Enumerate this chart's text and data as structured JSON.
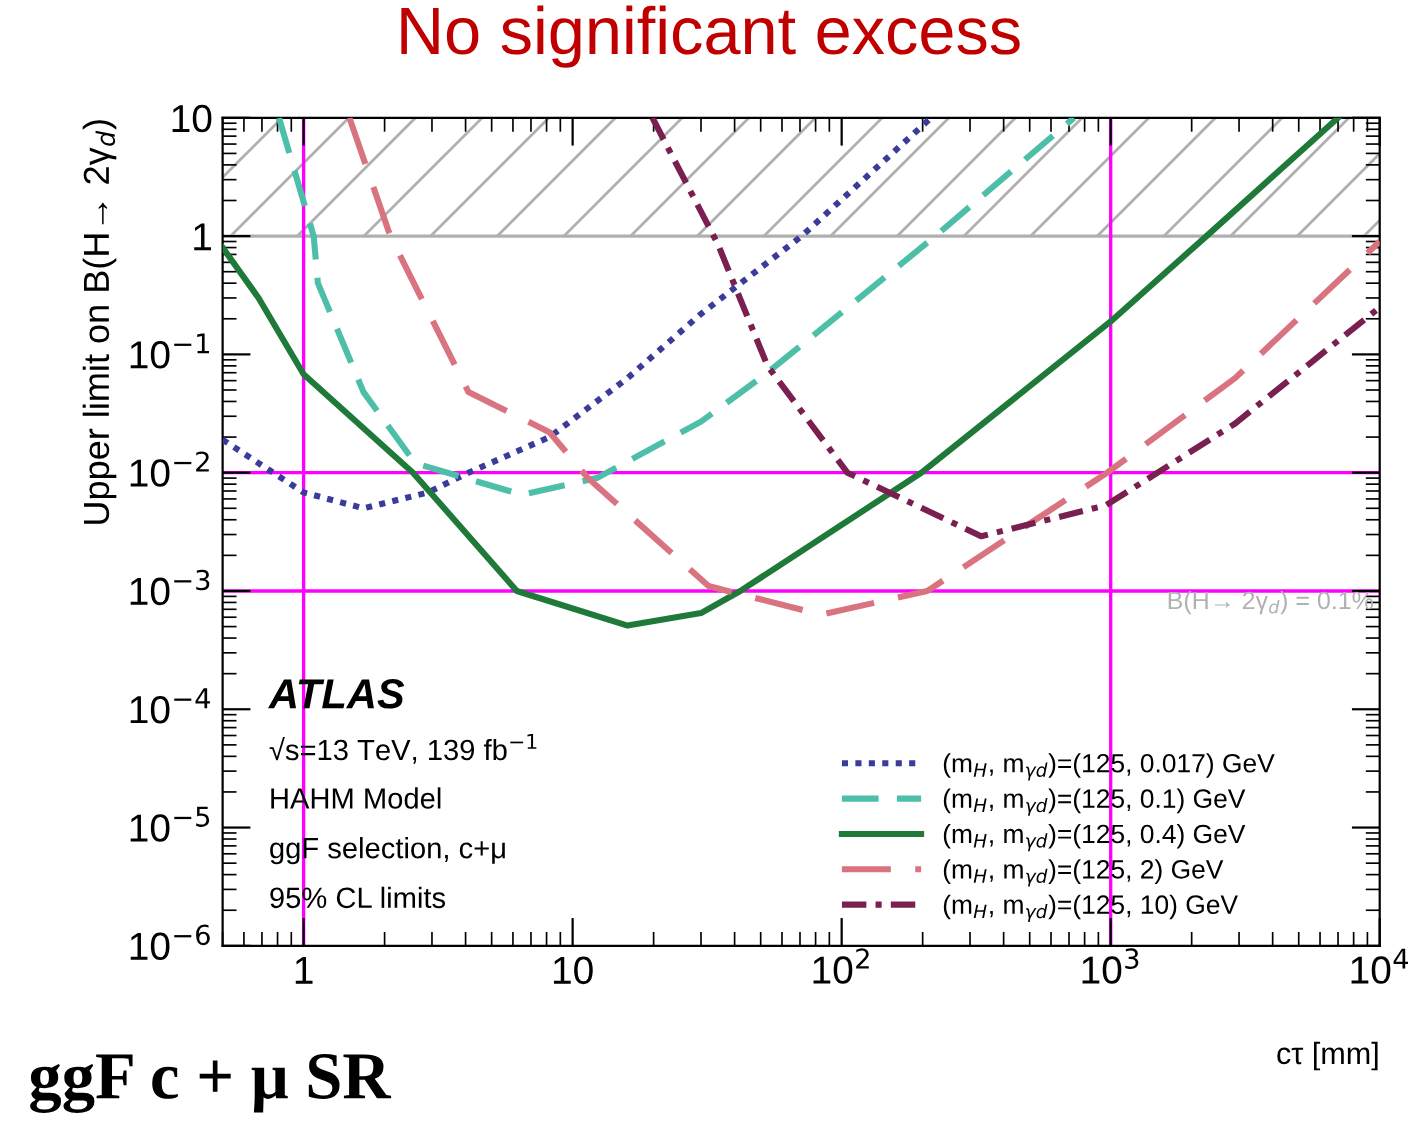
{
  "chart_data": {
    "type": "line",
    "title": "No significant excess",
    "xlabel": "cτ [mm]",
    "ylabel": "Upper limit on B(H→ 2γ$_{d}$)",
    "log": "xy",
    "grid": false,
    "legend": "bottom right",
    "xlim": [
      0.5,
      10000
    ],
    "xticks": [
      1,
      10,
      {
        "value": 100,
        "label": "10$^{2}$"
      },
      {
        "value": 1000,
        "label": "10$^{3}$"
      },
      {
        "value": 10000,
        "label": "10$^{4}$"
      }
    ],
    "ylim": [
      1e-06,
      10
    ],
    "yticks": [
      {
        "value": 1e-06,
        "label": "10$^{−6}$"
      },
      {
        "value": 1e-05,
        "label": "10$^{−5}$"
      },
      {
        "value": 0.0001,
        "label": "10$^{−4}$"
      },
      {
        "value": 0.001,
        "label": "10$^{−3}$"
      },
      {
        "value": 0.01,
        "label": "10$^{−2}$"
      },
      {
        "value": 0.1,
        "label": "10$^{−1}$"
      },
      1,
      10
    ],
    "series": [
      {
        "name": "(m$_{H}$, m$_{γd}$)=(125, 0.017) GeV",
        "color": "#3b3b9a",
        "line_style": "dotted",
        "x": [
          0.5,
          1,
          1.67,
          2.9,
          4.1,
          8.2,
          16,
          30,
          71,
          215
        ],
        "values": [
          0.019,
          0.0068,
          0.005,
          0.0068,
          0.01,
          0.02,
          0.063,
          0.22,
          1,
          10
        ]
      },
      {
        "name": "(m$_{H}$, m$_{γd}$)=(125, 0.1) GeV",
        "color": "#4dbfa8",
        "line_style": "dashed",
        "x": [
          0.81,
          1.09,
          1.13,
          1.67,
          2.6,
          6.5,
          12.3,
          30,
          53,
          223,
          730
        ],
        "values": [
          10,
          1,
          0.4,
          0.048,
          0.012,
          0.0065,
          0.009,
          0.027,
          0.07,
          1,
          10
        ]
      },
      {
        "name": "(m$_{H}$, m$_{γd}$)=(125, 0.4) GeV",
        "color": "#1f7a3a",
        "line_style": "solid",
        "x": [
          0.5,
          0.68,
          1,
          2.55,
          6.2,
          16,
          30,
          42,
          198,
          1000,
          2270,
          7000
        ],
        "values": [
          0.8,
          0.3,
          0.068,
          0.01,
          0.001,
          0.00051,
          0.00065,
          0.001,
          0.01,
          0.19,
          1,
          10
        ]
      },
      {
        "name": "(m$_{H}$, m$_{γd}$)=(125, 2) GeV",
        "color": "#d9737f",
        "line_style": "dashed",
        "x": [
          1.48,
          2.1,
          4.1,
          8.2,
          11.4,
          32,
          84,
          208,
          970,
          2900,
          10000
        ],
        "values": [
          10,
          1,
          0.048,
          0.022,
          0.009,
          0.0011,
          0.00063,
          0.001,
          0.01,
          0.063,
          0.9
        ]
      },
      {
        "name": "(m$_{H}$, m$_{γd}$)=(125, 10) GeV",
        "color": "#7a2050",
        "line_style": "dashdot",
        "x": [
          19.8,
          34.7,
          53,
          105,
          330,
          960,
          2900,
          10000
        ],
        "values": [
          10,
          0.85,
          0.08,
          0.01,
          0.0029,
          0.0053,
          0.026,
          0.25
        ]
      }
    ],
    "bands": [
      {
        "axis": "y",
        "from": 1,
        "to": 10,
        "color": "#b0b0b0"
      }
    ],
    "ref_lines": [
      {
        "axis": "y",
        "value": 1,
        "color": "#b0b0b0"
      },
      {
        "axis": "y",
        "value": 0.001,
        "color": "#ff00ff",
        "label": "B(H→ 2γ$_{d}$) = 0.1%"
      },
      {
        "axis": "y",
        "value": 0.01,
        "color": "#ff00ff"
      },
      {
        "axis": "x",
        "value": 1,
        "color": "#ff00ff"
      },
      {
        "axis": "x",
        "value": 1000,
        "color": "#ff00ff"
      }
    ],
    "annotations": [
      "ATLAS",
      "√s=13 TeV, 139 fb$^{−1}$",
      "HAHM Model",
      "ggF selection, c+μ",
      "95% CL limits",
      "ggF c + μ SR"
    ]
  }
}
